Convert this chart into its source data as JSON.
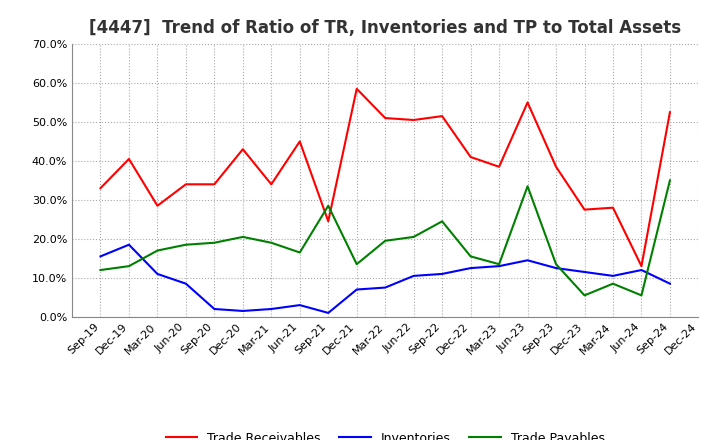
{
  "title": "[4447]  Trend of Ratio of TR, Inventories and TP to Total Assets",
  "x_labels": [
    "Sep-19",
    "Dec-19",
    "Mar-20",
    "Jun-20",
    "Sep-20",
    "Dec-20",
    "Mar-21",
    "Jun-21",
    "Sep-21",
    "Dec-21",
    "Mar-22",
    "Jun-22",
    "Sep-22",
    "Dec-22",
    "Mar-23",
    "Jun-23",
    "Sep-23",
    "Dec-23",
    "Mar-24",
    "Jun-24",
    "Sep-24",
    "Dec-24"
  ],
  "trade_receivables": [
    0.33,
    0.405,
    0.285,
    0.34,
    0.34,
    0.43,
    0.34,
    0.45,
    0.245,
    0.585,
    0.51,
    0.505,
    0.515,
    0.41,
    0.385,
    0.55,
    0.385,
    0.275,
    0.28,
    0.13,
    0.525,
    null
  ],
  "inventories": [
    0.155,
    0.185,
    0.11,
    0.085,
    0.02,
    0.015,
    0.02,
    0.03,
    0.01,
    0.07,
    0.075,
    0.105,
    0.11,
    0.125,
    0.13,
    0.145,
    0.125,
    0.115,
    0.105,
    0.12,
    0.085,
    null
  ],
  "trade_payables": [
    0.12,
    0.13,
    0.17,
    0.185,
    0.19,
    0.205,
    0.19,
    0.165,
    0.285,
    0.135,
    0.195,
    0.205,
    0.245,
    0.155,
    0.135,
    0.335,
    0.135,
    0.055,
    0.085,
    0.055,
    0.35,
    null
  ],
  "tr_color": "#FF0000",
  "inv_color": "#0000FF",
  "tp_color": "#008000",
  "ylim": [
    0.0,
    0.7
  ],
  "yticks": [
    0.0,
    0.1,
    0.2,
    0.3,
    0.4,
    0.5,
    0.6,
    0.7
  ],
  "background_color": "#FFFFFF",
  "grid_color": "#AAAAAA",
  "title_fontsize": 12,
  "legend_fontsize": 9,
  "tick_fontsize": 8
}
